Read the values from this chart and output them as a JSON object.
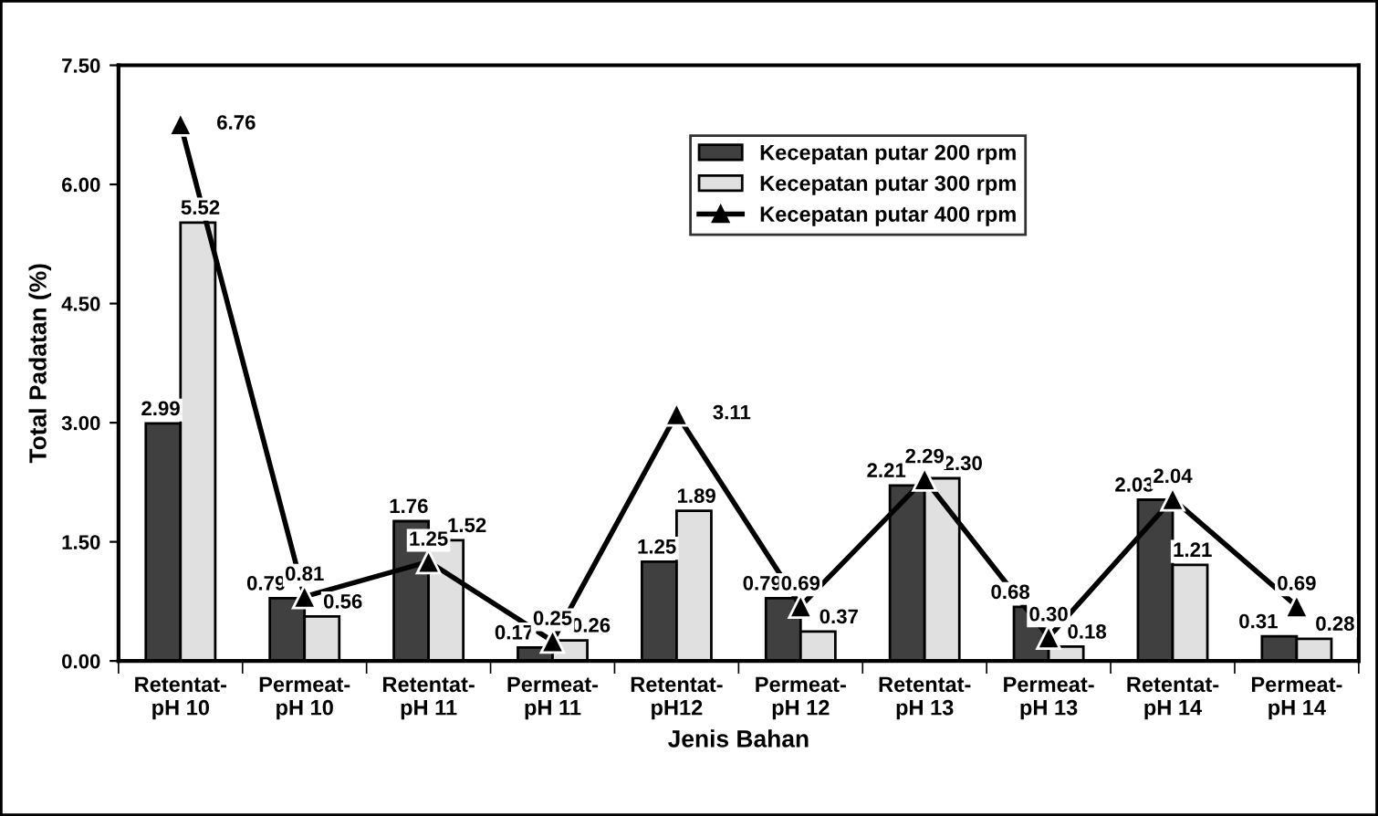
{
  "chart_data": {
    "type": "bar",
    "xlabel": "Jenis Bahan",
    "ylabel": "Total Padatan (%)",
    "categories": [
      "Retentat-\npH 10",
      "Permeat-\npH 10",
      "Retentat-\npH 11",
      "Permeat-\npH 11",
      "Retentat-\npH12",
      "Permeat-\npH 12",
      "Retentat-\npH 13",
      "Permeat-\npH 13",
      "Retentat-\npH 14",
      "Permeat-\npH 14"
    ],
    "series": [
      {
        "name": "Kecepatan putar 200 rpm",
        "color": "#404040",
        "values": [
          2.99,
          0.79,
          1.76,
          0.17,
          1.25,
          0.79,
          2.21,
          0.68,
          2.03,
          0.31
        ],
        "value_labels": [
          "2.99",
          "0.79",
          "1.76",
          "0.17",
          "1.25",
          "0.79",
          "2.21",
          "0.68",
          "2.03",
          "0.31"
        ]
      },
      {
        "name": "Kecepatan putar 300 rpm",
        "color": "#e0e0e0",
        "values": [
          5.52,
          0.56,
          1.52,
          0.26,
          1.89,
          0.37,
          2.3,
          0.18,
          1.21,
          0.28
        ],
        "value_labels": [
          "5.52",
          "0.56",
          "1.52",
          "0.26",
          "1.89",
          "0.37",
          "2.30",
          "0.18",
          "1.21",
          "0.28"
        ]
      },
      {
        "name": "Kecepatan putar 400 rpm",
        "type": "line",
        "color": "#000000",
        "values": [
          6.76,
          0.81,
          1.25,
          0.25,
          3.11,
          0.69,
          2.29,
          0.3,
          2.04,
          0.69
        ],
        "value_labels": [
          "6.76",
          "0.81",
          "1.25",
          "0.25",
          "3.11",
          "0.69",
          "2.29",
          "0.30",
          "2.04",
          "0.69"
        ]
      }
    ],
    "ylim": [
      0,
      7.5
    ],
    "yticks": [
      {
        "value": 0,
        "label": "0.00"
      },
      {
        "value": 1.5,
        "label": "1.50"
      },
      {
        "value": 3,
        "label": "3.00"
      },
      {
        "value": 4.5,
        "label": "4.50"
      },
      {
        "value": 6,
        "label": "6.00"
      },
      {
        "value": 7.5,
        "label": "7.50"
      }
    ],
    "grid": false,
    "legend": "top right",
    "marker": "triangle",
    "line_style": "solid"
  }
}
